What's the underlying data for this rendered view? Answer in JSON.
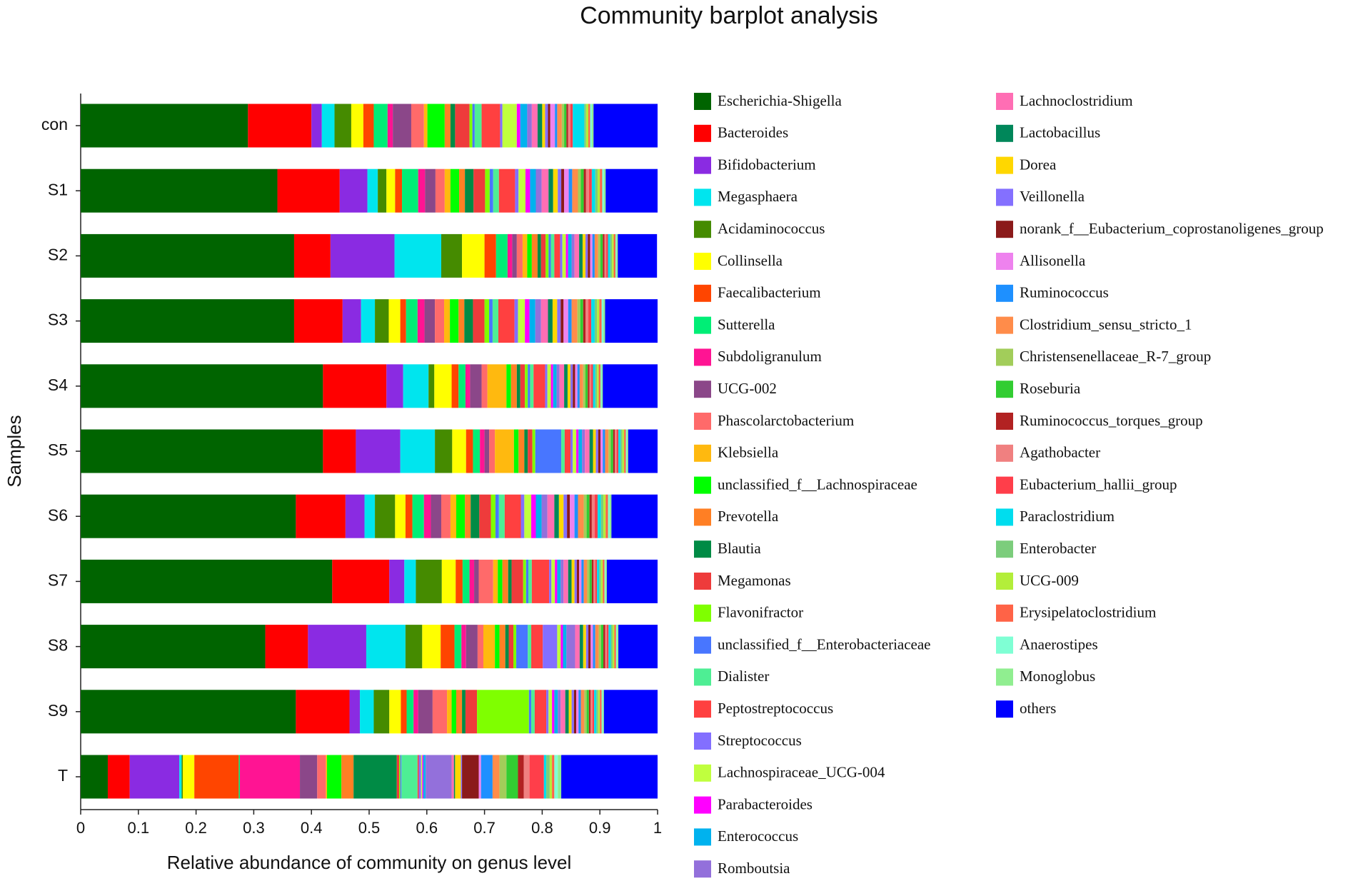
{
  "chart_data": {
    "type": "bar",
    "title": "Community barplot analysis",
    "x_label": "Relative abundance of community on genus level",
    "y_label": "Samples",
    "categories": [
      "con",
      "S1",
      "S2",
      "S3",
      "S4",
      "S5",
      "S6",
      "S7",
      "S8",
      "S9",
      "T"
    ],
    "xlim": [
      0,
      1
    ],
    "xticks": [
      0,
      0.1,
      0.2,
      0.3,
      0.4,
      0.5,
      0.6,
      0.7,
      0.8,
      0.9,
      1
    ],
    "series": [
      {
        "name": "Escherichia-Shigella",
        "color": "#006400",
        "values": [
          0.29,
          0.341,
          0.37,
          0.37,
          0.42,
          0.42,
          0.373,
          0.436,
          0.32,
          0.373,
          0.047
        ]
      },
      {
        "name": "Bacteroides",
        "color": "#ff0000",
        "values": [
          0.11,
          0.108,
          0.063,
          0.084,
          0.11,
          0.057,
          0.086,
          0.099,
          0.074,
          0.093,
          0.038
        ]
      },
      {
        "name": "Bifidobacterium",
        "color": "#8a2be2",
        "values": [
          0.018,
          0.048,
          0.111,
          0.032,
          0.029,
          0.077,
          0.033,
          0.026,
          0.101,
          0.018,
          0.086
        ]
      },
      {
        "name": "Megasphaera",
        "color": "#00e5ee",
        "values": [
          0.022,
          0.018,
          0.081,
          0.024,
          0.044,
          0.06,
          0.018,
          0.02,
          0.068,
          0.024,
          0.004
        ]
      },
      {
        "name": "Acidaminococcus",
        "color": "#458b00",
        "values": [
          0.029,
          0.015,
          0.036,
          0.024,
          0.01,
          0.03,
          0.035,
          0.045,
          0.029,
          0.027,
          0.002
        ]
      },
      {
        "name": "Collinsella",
        "color": "#ffff00",
        "values": [
          0.021,
          0.015,
          0.039,
          0.02,
          0.03,
          0.024,
          0.018,
          0.024,
          0.032,
          0.02,
          0.02
        ]
      },
      {
        "name": "Faecalibacterium",
        "color": "#ff4500",
        "values": [
          0.018,
          0.012,
          0.02,
          0.01,
          0.012,
          0.012,
          0.012,
          0.012,
          0.024,
          0.01,
          0.077
        ]
      },
      {
        "name": "Sutterella",
        "color": "#00ee76",
        "values": [
          0.024,
          0.028,
          0.02,
          0.02,
          0.012,
          0.012,
          0.02,
          0.012,
          0.012,
          0.012,
          0.002
        ]
      },
      {
        "name": "Subdoligranulum",
        "color": "#ff1493",
        "values": [
          0.009,
          0.012,
          0.008,
          0.012,
          0.008,
          0.008,
          0.012,
          0.008,
          0.008,
          0.008,
          0.104
        ]
      },
      {
        "name": "UCG-002",
        "color": "#8b4789",
        "values": [
          0.032,
          0.018,
          0.008,
          0.018,
          0.02,
          0.008,
          0.018,
          0.008,
          0.02,
          0.025,
          0.03
        ]
      },
      {
        "name": "Phascolarctobacterium",
        "color": "#ff6a6a",
        "values": [
          0.022,
          0.016,
          0.01,
          0.016,
          0.01,
          0.01,
          0.016,
          0.025,
          0.01,
          0.025,
          0.015
        ]
      },
      {
        "name": "Klebsiella",
        "color": "#ffb90f",
        "values": [
          0.006,
          0.01,
          0.008,
          0.01,
          0.033,
          0.033,
          0.01,
          0.008,
          0.02,
          0.008,
          0.002
        ]
      },
      {
        "name": "unclassified_f__Lachnospiraceae",
        "color": "#00ff00",
        "values": [
          0.03,
          0.015,
          0.008,
          0.015,
          0.008,
          0.008,
          0.015,
          0.008,
          0.008,
          0.008,
          0.025
        ]
      },
      {
        "name": "Prevotella",
        "color": "#ff7f24",
        "values": [
          0.01,
          0.01,
          0.01,
          0.01,
          0.01,
          0.01,
          0.01,
          0.01,
          0.01,
          0.01,
          0.021
        ]
      },
      {
        "name": "Blautia",
        "color": "#008b45",
        "values": [
          0.008,
          0.015,
          0.006,
          0.015,
          0.006,
          0.006,
          0.015,
          0.006,
          0.006,
          0.006,
          0.075
        ]
      },
      {
        "name": "Megamonas",
        "color": "#ee3b3b",
        "values": [
          0.025,
          0.02,
          0.008,
          0.02,
          0.008,
          0.008,
          0.02,
          0.02,
          0.008,
          0.02,
          0.004
        ]
      },
      {
        "name": "Flavonifractor",
        "color": "#7fff00",
        "values": [
          0.005,
          0.008,
          0.005,
          0.008,
          0.005,
          0.005,
          0.008,
          0.005,
          0.005,
          0.09,
          0.002
        ]
      },
      {
        "name": "unclassified_f__Enterobacteriaceae",
        "color": "#4876ff",
        "values": [
          0.004,
          0.006,
          0.004,
          0.006,
          0.004,
          0.045,
          0.006,
          0.004,
          0.02,
          0.004,
          0.002
        ]
      },
      {
        "name": "Dialister",
        "color": "#4eee94",
        "values": [
          0.012,
          0.01,
          0.006,
          0.01,
          0.006,
          0.006,
          0.01,
          0.006,
          0.006,
          0.006,
          0.028
        ]
      },
      {
        "name": "Peptostreptococcus",
        "color": "#ff4040",
        "values": [
          0.032,
          0.028,
          0.01,
          0.028,
          0.02,
          0.01,
          0.028,
          0.03,
          0.02,
          0.02,
          0.002
        ]
      },
      {
        "name": "Streptococcus",
        "color": "#836fff",
        "values": [
          0.004,
          0.006,
          0.004,
          0.006,
          0.004,
          0.004,
          0.006,
          0.004,
          0.025,
          0.004,
          0.004
        ]
      },
      {
        "name": "Lachnospiraceae_UCG-004",
        "color": "#c0ff3e",
        "values": [
          0.025,
          0.012,
          0.006,
          0.012,
          0.006,
          0.006,
          0.012,
          0.006,
          0.006,
          0.006,
          0.002
        ]
      },
      {
        "name": "Parabacteroides",
        "color": "#ff00ff",
        "values": [
          0.006,
          0.008,
          0.004,
          0.008,
          0.004,
          0.004,
          0.008,
          0.004,
          0.004,
          0.004,
          0.002
        ]
      },
      {
        "name": "Enterococcus",
        "color": "#00b2ee",
        "values": [
          0.012,
          0.01,
          0.006,
          0.01,
          0.006,
          0.006,
          0.01,
          0.006,
          0.006,
          0.006,
          0.004
        ]
      },
      {
        "name": "Romboutsia",
        "color": "#9370db",
        "values": [
          0.008,
          0.01,
          0.005,
          0.01,
          0.005,
          0.005,
          0.01,
          0.005,
          0.015,
          0.005,
          0.045
        ]
      },
      {
        "name": "Lachnoclostridium",
        "color": "#ff6eb4",
        "values": [
          0.01,
          0.012,
          0.008,
          0.012,
          0.008,
          0.008,
          0.012,
          0.008,
          0.008,
          0.008,
          0.004
        ]
      },
      {
        "name": "Lactobacillus",
        "color": "#00875a",
        "values": [
          0.008,
          0.008,
          0.006,
          0.008,
          0.006,
          0.006,
          0.008,
          0.006,
          0.006,
          0.006,
          0.002
        ]
      },
      {
        "name": "Dorea",
        "color": "#ffd700",
        "values": [
          0.005,
          0.008,
          0.005,
          0.008,
          0.005,
          0.005,
          0.008,
          0.005,
          0.005,
          0.005,
          0.01
        ]
      },
      {
        "name": "Veillonella",
        "color": "#8470ff",
        "values": [
          0.005,
          0.006,
          0.004,
          0.006,
          0.004,
          0.004,
          0.006,
          0.004,
          0.004,
          0.004,
          0.002
        ]
      },
      {
        "name": "norank_f__Eubacterium_coprostanoligenes_group",
        "color": "#8b1a1a",
        "values": [
          0.004,
          0.005,
          0.004,
          0.005,
          0.004,
          0.004,
          0.005,
          0.004,
          0.004,
          0.004,
          0.029
        ]
      },
      {
        "name": "Allisonella",
        "color": "#ee82ee",
        "values": [
          0.008,
          0.008,
          0.004,
          0.008,
          0.004,
          0.004,
          0.008,
          0.004,
          0.004,
          0.004,
          0.004
        ]
      },
      {
        "name": "Ruminococcus",
        "color": "#1e90ff",
        "values": [
          0.004,
          0.006,
          0.004,
          0.006,
          0.004,
          0.004,
          0.006,
          0.004,
          0.004,
          0.004,
          0.02
        ]
      },
      {
        "name": "Clostridium_sensu_stricto_1",
        "color": "#ff8c4a",
        "values": [
          0.008,
          0.01,
          0.006,
          0.01,
          0.006,
          0.006,
          0.01,
          0.006,
          0.006,
          0.006,
          0.012
        ]
      },
      {
        "name": "Christensenellaceae_R-7_group",
        "color": "#a2cd5a",
        "values": [
          0.004,
          0.005,
          0.004,
          0.005,
          0.004,
          0.004,
          0.005,
          0.004,
          0.004,
          0.004,
          0.012
        ]
      },
      {
        "name": "Roseburia",
        "color": "#32cd32",
        "values": [
          0.004,
          0.005,
          0.004,
          0.005,
          0.004,
          0.004,
          0.005,
          0.004,
          0.004,
          0.004,
          0.02
        ]
      },
      {
        "name": "Ruminococcus_torques_group",
        "color": "#b22222",
        "values": [
          0.003,
          0.004,
          0.003,
          0.004,
          0.003,
          0.003,
          0.004,
          0.003,
          0.003,
          0.003,
          0.01
        ]
      },
      {
        "name": "Agathobacter",
        "color": "#f08080",
        "values": [
          0.004,
          0.005,
          0.003,
          0.005,
          0.003,
          0.003,
          0.005,
          0.003,
          0.003,
          0.003,
          0.01
        ]
      },
      {
        "name": "Eubacterium_hallii_group",
        "color": "#ff3e4a",
        "values": [
          0.004,
          0.005,
          0.003,
          0.005,
          0.003,
          0.003,
          0.005,
          0.003,
          0.003,
          0.003,
          0.025
        ]
      },
      {
        "name": "Paraclostridium",
        "color": "#00ddee",
        "values": [
          0.02,
          0.006,
          0.004,
          0.006,
          0.004,
          0.004,
          0.006,
          0.004,
          0.004,
          0.004,
          0.004
        ]
      },
      {
        "name": "Enterobacter",
        "color": "#7ccd7c",
        "values": [
          0.003,
          0.004,
          0.003,
          0.004,
          0.003,
          0.003,
          0.004,
          0.003,
          0.003,
          0.003,
          0.006
        ]
      },
      {
        "name": "UCG-009",
        "color": "#b3ee3a",
        "values": [
          0.004,
          0.004,
          0.003,
          0.004,
          0.003,
          0.003,
          0.004,
          0.003,
          0.003,
          0.003,
          0.004
        ]
      },
      {
        "name": "Erysipelatoclostridium",
        "color": "#ff6347",
        "values": [
          0.003,
          0.004,
          0.003,
          0.004,
          0.003,
          0.003,
          0.004,
          0.003,
          0.003,
          0.003,
          0.004
        ]
      },
      {
        "name": "Anaerostipes",
        "color": "#7fffd4",
        "values": [
          0.003,
          0.003,
          0.002,
          0.003,
          0.002,
          0.002,
          0.003,
          0.002,
          0.002,
          0.002,
          0.006
        ]
      },
      {
        "name": "Monoglobus",
        "color": "#90ee90",
        "values": [
          0.003,
          0.003,
          0.002,
          0.003,
          0.002,
          0.002,
          0.003,
          0.002,
          0.002,
          0.002,
          0.006
        ]
      },
      {
        "name": "others",
        "color": "#0000ff",
        "values": [
          0.111,
          0.09,
          0.068,
          0.091,
          0.095,
          0.051,
          0.08,
          0.088,
          0.068,
          0.093,
          0.167
        ]
      }
    ]
  }
}
